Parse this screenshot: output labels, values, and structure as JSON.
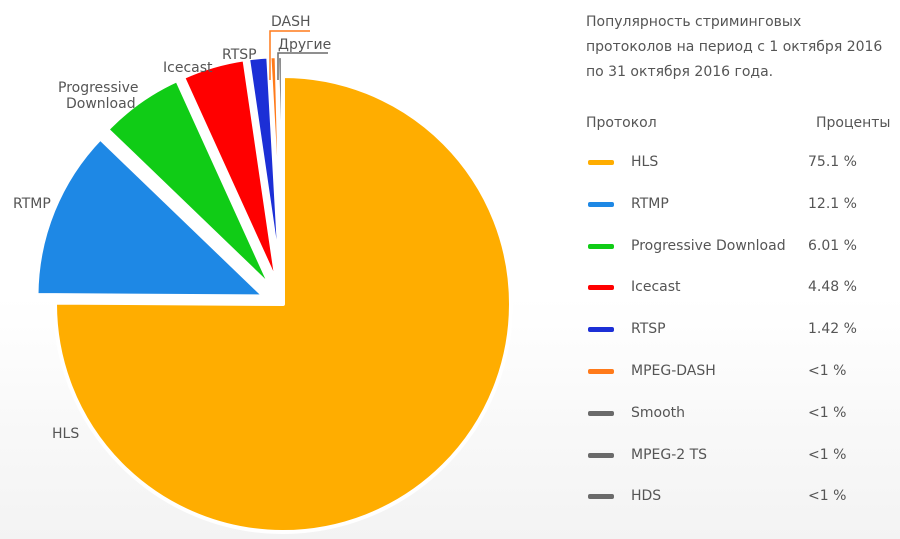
{
  "chart_data": {
    "type": "pie",
    "title": "Популярность стриминговых протоколов на период с 1 октября 2016 по 31 октября 2016 года.",
    "slices": [
      {
        "label": "HLS",
        "value": 75.1,
        "color": "#ffad00"
      },
      {
        "label": "RTMP",
        "value": 12.1,
        "color": "#1e88e5"
      },
      {
        "label": "Progressive Download",
        "value": 6.01,
        "color": "#10cc16"
      },
      {
        "label": "Icecast",
        "value": 4.48,
        "color": "#ff0000"
      },
      {
        "label": "RTSP",
        "value": 1.42,
        "color": "#1c2fd6"
      },
      {
        "label": "DASH",
        "value": 0.5,
        "color": "#ff7a1a"
      },
      {
        "label": "Другие",
        "value": 0.39,
        "color": "#6a6a6a"
      }
    ],
    "legend": {
      "col_protocol": "Протокол",
      "col_percent": "Проценты",
      "rows": [
        {
          "name": "HLS",
          "value": "75.1 %",
          "color": "#ffad00"
        },
        {
          "name": "RTMP",
          "value": "12.1 %",
          "color": "#1e88e5"
        },
        {
          "name": "Progressive Download",
          "value": "6.01 %",
          "color": "#10cc16"
        },
        {
          "name": "Icecast",
          "value": "4.48 %",
          "color": "#ff0000"
        },
        {
          "name": "RTSP",
          "value": "1.42 %",
          "color": "#1c2fd6"
        },
        {
          "name": "MPEG-DASH",
          "value": "<1 %",
          "color": "#ff7a1a"
        },
        {
          "name": "Smooth",
          "value": "<1 %",
          "color": "#6a6a6a"
        },
        {
          "name": "MPEG-2 TS",
          "value": "<1 %",
          "color": "#6a6a6a"
        },
        {
          "name": "HDS",
          "value": "<1 %",
          "color": "#6a6a6a"
        }
      ]
    }
  }
}
